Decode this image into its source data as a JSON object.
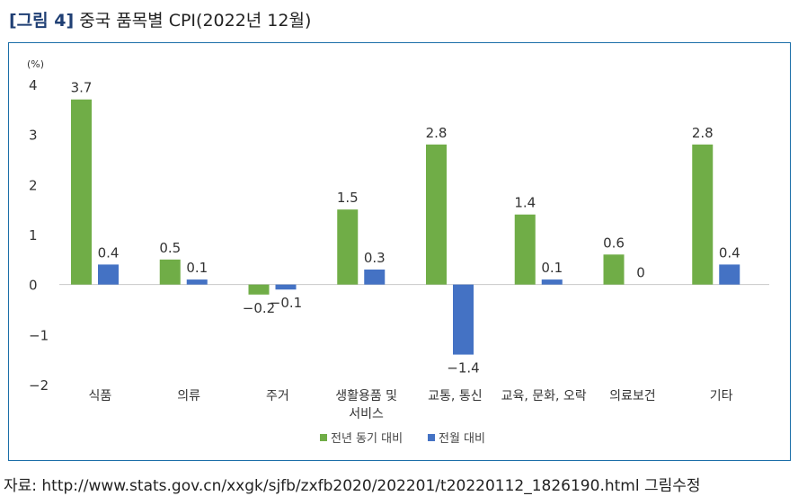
{
  "figure": {
    "tag": "[그림 4]",
    "title": "중국 품목별 CPI(2022년 12월)"
  },
  "source": "자료: http://www.stats.gov.cn/xxgk/sjfb/zxfb2020/202201/t20220112_1826190.html 그림수정",
  "chart_data": {
    "type": "bar",
    "unit_label": "(%)",
    "categories": [
      "식품",
      "의류",
      "주거",
      "생활용품 및\n서비스",
      "교통, 통신",
      "교육, 문화, 오락",
      "의료보건",
      "기타"
    ],
    "series": [
      {
        "name": "전년 동기 대비",
        "color": "#70ad47",
        "values": [
          3.7,
          0.5,
          -0.2,
          1.5,
          2.8,
          1.4,
          0.6,
          2.8
        ]
      },
      {
        "name": "전월 대비",
        "color": "#4472c4",
        "values": [
          0.4,
          0.1,
          -0.1,
          0.3,
          -1.4,
          0.1,
          0,
          0.4
        ]
      }
    ],
    "data_labels": [
      [
        "3.7",
        "0.5",
        "−0.2",
        "1.5",
        "2.8",
        "1.4",
        "0.6",
        "2.8"
      ],
      [
        "0.4",
        "0.1",
        "−0.1",
        "0.3",
        "−1.4",
        "0.1",
        "0",
        "0.4"
      ]
    ],
    "ylim": [
      -2,
      4
    ],
    "yticks": [
      -2,
      -1,
      0,
      1,
      2,
      3,
      4
    ],
    "ytick_labels": [
      "−2",
      "−1",
      "0",
      "1",
      "2",
      "3",
      "4"
    ],
    "grid": false,
    "legend_position": "bottom"
  }
}
